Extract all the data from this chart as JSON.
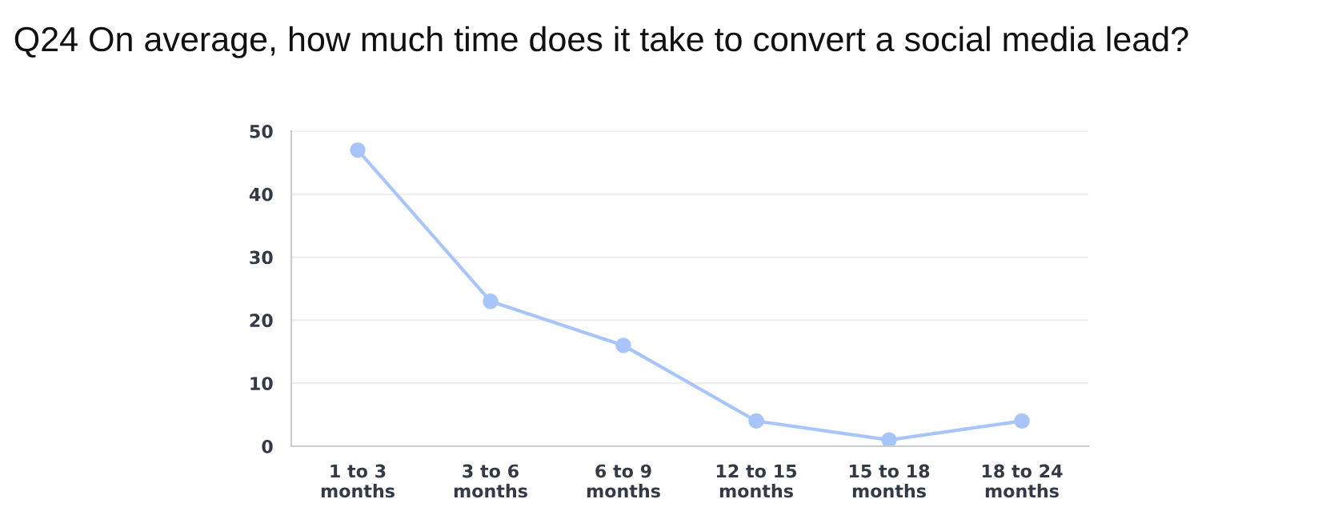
{
  "chart_data": {
    "type": "line",
    "title": "Q24 On average, how much time does it take to convert a social media lead?",
    "categories": [
      "1 to 3\nmonths",
      "3 to 6\nmonths",
      "6 to 9\nmonths",
      "12 to 15\nmonths",
      "15 to 18\nmonths",
      "18 to 24\nmonths"
    ],
    "series": [
      {
        "color": "#a8c5fb",
        "values": [
          47,
          23,
          16,
          4,
          1,
          4
        ]
      }
    ],
    "ylim": [
      0,
      50
    ],
    "yticks": [
      0,
      10,
      20,
      30,
      40,
      50
    ],
    "grid": "y",
    "marker": "circle",
    "line_style": "solid"
  }
}
